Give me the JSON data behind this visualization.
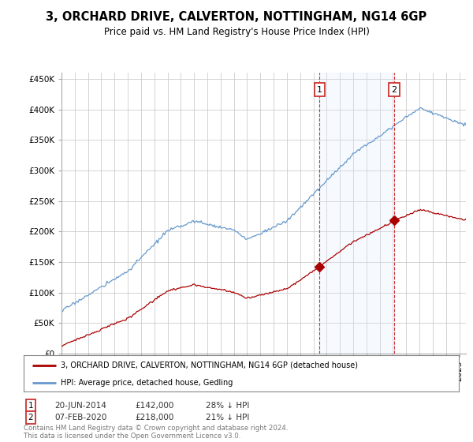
{
  "title": "3, ORCHARD DRIVE, CALVERTON, NOTTINGHAM, NG14 6GP",
  "subtitle": "Price paid vs. HM Land Registry's House Price Index (HPI)",
  "yticks": [
    0,
    50000,
    100000,
    150000,
    200000,
    250000,
    300000,
    350000,
    400000,
    450000
  ],
  "ytick_labels": [
    "£0",
    "£50K",
    "£100K",
    "£150K",
    "£200K",
    "£250K",
    "£300K",
    "£350K",
    "£400K",
    "£450K"
  ],
  "xlim_start": 1995.0,
  "xlim_end": 2025.5,
  "ylim_max": 460000,
  "sale1_x": 2014.47,
  "sale1_y": 142000,
  "sale1_label": "1",
  "sale1_date": "20-JUN-2014",
  "sale1_price": "£142,000",
  "sale1_hpi": "28% ↓ HPI",
  "sale2_x": 2020.09,
  "sale2_y": 218000,
  "sale2_label": "2",
  "sale2_date": "07-FEB-2020",
  "sale2_price": "£218,000",
  "sale2_hpi": "21% ↓ HPI",
  "line_color_red": "#aa0000",
  "line_color_blue": "#6699cc",
  "dashed_color": "#cc3333",
  "shade_color": "#ddeeff",
  "legend1": "3, ORCHARD DRIVE, CALVERTON, NOTTINGHAM, NG14 6GP (detached house)",
  "legend2": "HPI: Average price, detached house, Gedling",
  "footer": "Contains HM Land Registry data © Crown copyright and database right 2024.\nThis data is licensed under the Open Government Licence v3.0.",
  "background_color": "#ffffff",
  "grid_color": "#cccccc",
  "title_fontsize": 10.5,
  "subtitle_fontsize": 8.5,
  "tick_fontsize": 7.5
}
